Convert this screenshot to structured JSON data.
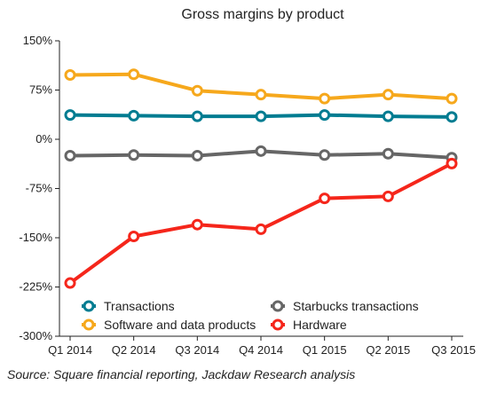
{
  "chart_data": {
    "type": "line",
    "title": "Gross margins by product",
    "categories": [
      "Q1 2014",
      "Q2 2014",
      "Q3 2014",
      "Q4 2014",
      "Q1 2015",
      "Q2 2015",
      "Q3 2015"
    ],
    "y_ticks": [
      "150%",
      "75%",
      "0%",
      "-75%",
      "-150%",
      "-225%",
      "-300%"
    ],
    "ylim": [
      -300,
      150
    ],
    "grid": false,
    "legend_position": "bottom-inside",
    "series": [
      {
        "name": "Transactions",
        "color": "#007c91",
        "values": [
          37,
          36,
          35,
          35,
          37,
          35,
          34
        ]
      },
      {
        "name": "Software and data products",
        "color": "#f6a81c",
        "values": [
          98,
          99,
          74,
          68,
          62,
          68,
          62
        ]
      },
      {
        "name": "Starbucks transactions",
        "color": "#666666",
        "values": [
          -25,
          -24,
          -25,
          -18,
          -24,
          -22,
          -28
        ]
      },
      {
        "name": "Hardware",
        "color": "#f5261b",
        "values": [
          -219,
          -148,
          -130,
          -137,
          -90,
          -87,
          -37
        ]
      }
    ]
  },
  "source": "Source: Square financial reporting, Jackdaw Research analysis"
}
